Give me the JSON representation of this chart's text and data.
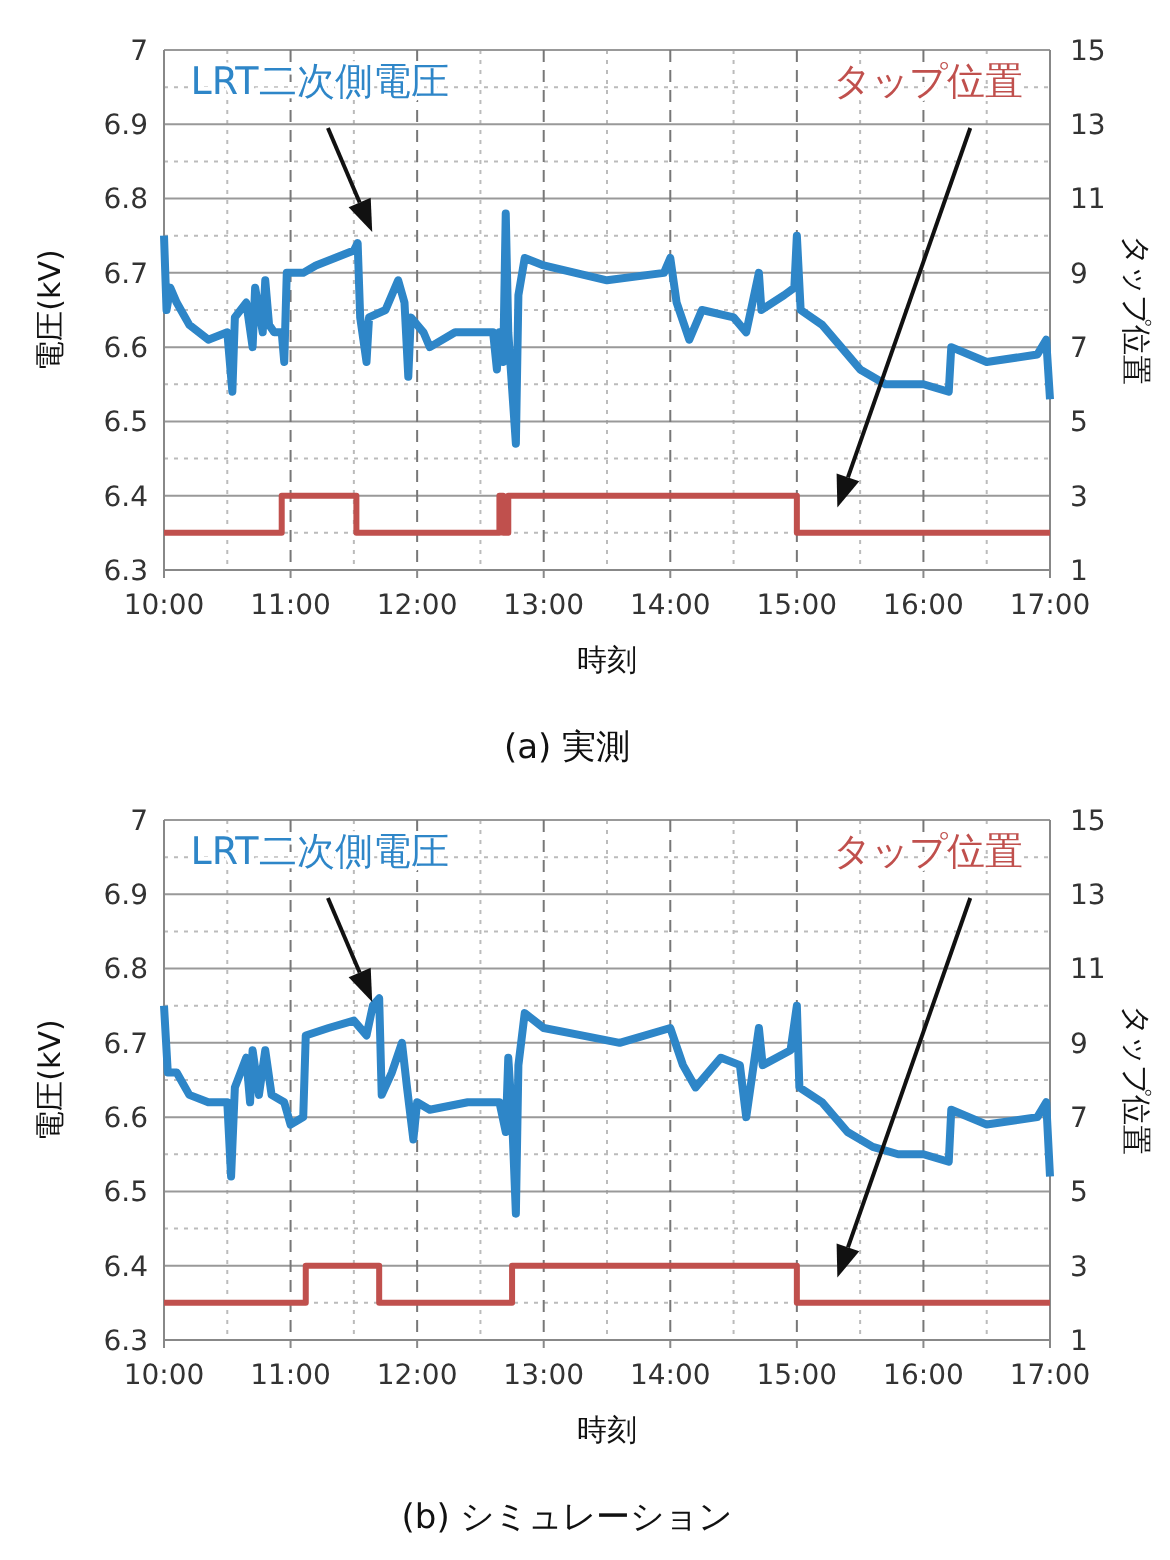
{
  "chart_data": [
    {
      "type": "line",
      "title": "(a) 実測",
      "xlabel": "時刻",
      "ylabel": "電圧(kV)",
      "y2label": "タップ位置",
      "xlim": [
        10,
        17
      ],
      "xticks": [
        {
          "value": 10,
          "label": "10:00"
        },
        {
          "value": 11,
          "label": "11:00"
        },
        {
          "value": 12,
          "label": "12:00"
        },
        {
          "value": 13,
          "label": "13:00"
        },
        {
          "value": 14,
          "label": "14:00"
        },
        {
          "value": 15,
          "label": "15:00"
        },
        {
          "value": 16,
          "label": "16:00"
        },
        {
          "value": 17,
          "label": "17:00"
        }
      ],
      "ylim": [
        6.3,
        7
      ],
      "yticks": [
        6.3,
        6.4,
        6.5,
        6.6,
        6.7,
        6.8,
        6.9,
        7
      ],
      "y2lim": [
        1,
        15
      ],
      "y2ticks": [
        1,
        3,
        5,
        7,
        9,
        11,
        13,
        15
      ],
      "grid": true,
      "series": [
        {
          "name": "LRT二次側電圧",
          "color": "#2e86c8",
          "x": [
            10.0,
            10.02,
            10.05,
            10.1,
            10.2,
            10.35,
            10.5,
            10.54,
            10.56,
            10.65,
            10.7,
            10.72,
            10.78,
            10.8,
            10.83,
            10.87,
            10.93,
            10.95,
            10.97,
            11.1,
            11.2,
            11.5,
            11.53,
            11.55,
            11.6,
            11.62,
            11.75,
            11.85,
            11.9,
            11.93,
            11.95,
            12.05,
            12.1,
            12.3,
            12.6,
            12.63,
            12.65,
            12.68,
            12.7,
            12.72,
            12.78,
            12.8,
            12.85,
            13.0,
            13.5,
            13.95,
            14.0,
            14.05,
            14.15,
            14.25,
            14.5,
            14.6,
            14.7,
            14.72,
            14.9,
            14.98,
            15.0,
            15.03,
            15.2,
            15.35,
            15.5,
            15.7,
            16.0,
            16.2,
            16.22,
            16.5,
            16.9,
            16.97,
            17.0
          ],
          "values": [
            6.75,
            6.65,
            6.68,
            6.66,
            6.63,
            6.61,
            6.62,
            6.54,
            6.64,
            6.66,
            6.6,
            6.68,
            6.62,
            6.69,
            6.63,
            6.62,
            6.62,
            6.58,
            6.7,
            6.7,
            6.71,
            6.73,
            6.74,
            6.64,
            6.58,
            6.64,
            6.65,
            6.69,
            6.66,
            6.56,
            6.64,
            6.62,
            6.6,
            6.62,
            6.62,
            6.57,
            6.62,
            6.58,
            6.78,
            6.62,
            6.47,
            6.67,
            6.72,
            6.71,
            6.69,
            6.7,
            6.72,
            6.66,
            6.61,
            6.65,
            6.64,
            6.62,
            6.7,
            6.65,
            6.67,
            6.68,
            6.75,
            6.65,
            6.63,
            6.6,
            6.57,
            6.55,
            6.55,
            6.54,
            6.6,
            6.58,
            6.59,
            6.61,
            6.53
          ]
        },
        {
          "name": "タップ位置",
          "type": "step",
          "axis": "y2",
          "color": "#c0504d",
          "x": [
            10,
            10.93,
            11.52,
            12.65,
            12.68,
            12.72,
            15,
            17
          ],
          "values": [
            2,
            3,
            2,
            3,
            2,
            3,
            2,
            2
          ]
        }
      ]
    },
    {
      "type": "line",
      "title": "(b) シミュレーション",
      "xlabel": "時刻",
      "ylabel": "電圧(kV)",
      "y2label": "タップ位置",
      "xlim": [
        10,
        17
      ],
      "xticks": [
        {
          "value": 10,
          "label": "10:00"
        },
        {
          "value": 11,
          "label": "11:00"
        },
        {
          "value": 12,
          "label": "12:00"
        },
        {
          "value": 13,
          "label": "13:00"
        },
        {
          "value": 14,
          "label": "14:00"
        },
        {
          "value": 15,
          "label": "15:00"
        },
        {
          "value": 16,
          "label": "16:00"
        },
        {
          "value": 17,
          "label": "17:00"
        }
      ],
      "ylim": [
        6.3,
        7
      ],
      "yticks": [
        6.3,
        6.4,
        6.5,
        6.6,
        6.7,
        6.8,
        6.9,
        7
      ],
      "y2lim": [
        1,
        15
      ],
      "y2ticks": [
        1,
        3,
        5,
        7,
        9,
        11,
        13,
        15
      ],
      "grid": true,
      "series": [
        {
          "name": "LRT二次側電圧",
          "color": "#2e86c8",
          "x": [
            10.0,
            10.03,
            10.1,
            10.2,
            10.35,
            10.5,
            10.53,
            10.56,
            10.65,
            10.68,
            10.7,
            10.75,
            10.8,
            10.85,
            10.95,
            11.0,
            11.1,
            11.12,
            11.3,
            11.5,
            11.6,
            11.65,
            11.7,
            11.72,
            11.8,
            11.88,
            11.92,
            11.97,
            12.0,
            12.1,
            12.4,
            12.65,
            12.7,
            12.72,
            12.75,
            12.78,
            12.8,
            12.85,
            13.0,
            13.3,
            13.6,
            14.0,
            14.1,
            14.2,
            14.4,
            14.55,
            14.6,
            14.65,
            14.7,
            14.73,
            14.95,
            15.0,
            15.02,
            15.2,
            15.4,
            15.6,
            15.8,
            16.0,
            16.2,
            16.22,
            16.5,
            16.9,
            16.97,
            17.0
          ],
          "values": [
            6.75,
            6.66,
            6.66,
            6.63,
            6.62,
            6.62,
            6.52,
            6.64,
            6.68,
            6.62,
            6.69,
            6.63,
            6.69,
            6.63,
            6.62,
            6.59,
            6.6,
            6.71,
            6.72,
            6.73,
            6.71,
            6.75,
            6.76,
            6.63,
            6.66,
            6.7,
            6.64,
            6.57,
            6.62,
            6.61,
            6.62,
            6.62,
            6.58,
            6.68,
            6.6,
            6.47,
            6.67,
            6.74,
            6.72,
            6.71,
            6.7,
            6.72,
            6.67,
            6.64,
            6.68,
            6.67,
            6.6,
            6.66,
            6.72,
            6.67,
            6.69,
            6.75,
            6.64,
            6.62,
            6.58,
            6.56,
            6.55,
            6.55,
            6.54,
            6.61,
            6.59,
            6.6,
            6.62,
            6.52
          ]
        },
        {
          "name": "タップ位置",
          "type": "step",
          "axis": "y2",
          "color": "#c0504d",
          "x": [
            10,
            11.12,
            11.7,
            12.75,
            15,
            17
          ],
          "values": [
            2,
            3,
            2,
            3,
            2,
            2
          ]
        }
      ]
    }
  ]
}
